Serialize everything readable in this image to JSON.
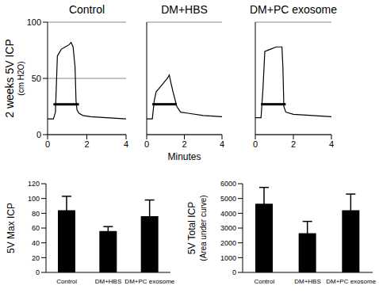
{
  "chart_data": [
    {
      "type": "line",
      "title": "Control",
      "y_label": [
        "2 weeks 5V ICP",
        "(cm H2O)"
      ],
      "x": [
        0,
        0.3,
        0.4,
        0.5,
        0.7,
        0.9,
        1.1,
        1.2,
        1.3,
        1.4,
        1.45,
        1.5,
        1.6,
        1.8,
        2.2,
        3,
        4
      ],
      "values": [
        14,
        14,
        20,
        70,
        76,
        78,
        80,
        82,
        78,
        60,
        30,
        22,
        19,
        17,
        16,
        15,
        14
      ],
      "color": "#000000",
      "stimulus": {
        "x": [
          0.3,
          1.6
        ],
        "y": 27
      },
      "xlim": [
        0,
        4
      ],
      "xticks": [
        0,
        2,
        4
      ],
      "ylim": [
        0,
        100
      ],
      "yticks": [
        0,
        50,
        100
      ],
      "grid": true
    },
    {
      "type": "line",
      "title": "DM+HBS",
      "x_label": "Minutes",
      "x": [
        0,
        0.3,
        0.4,
        0.5,
        0.7,
        0.9,
        1.1,
        1.2,
        1.3,
        1.4,
        1.6,
        1.8,
        2.2,
        3,
        4
      ],
      "values": [
        14,
        14,
        30,
        38,
        42,
        46,
        50,
        53,
        45,
        38,
        25,
        20,
        19,
        17,
        16
      ],
      "color": "#000000",
      "stimulus": {
        "x": [
          0.3,
          1.6
        ],
        "y": 27
      },
      "xlim": [
        0,
        4
      ],
      "xticks": [
        0,
        2,
        4
      ],
      "ylim": [
        0,
        100
      ],
      "yticks": [
        0,
        50,
        100
      ],
      "grid": true,
      "tick_labels": "x"
    },
    {
      "type": "line",
      "title": "DM+PC exosome",
      "x": [
        0,
        0.3,
        0.4,
        0.5,
        0.8,
        1.1,
        1.4,
        1.45,
        1.5,
        1.6,
        2,
        3,
        4
      ],
      "values": [
        15,
        15,
        40,
        74,
        76,
        78,
        78,
        60,
        25,
        20,
        18,
        17,
        16
      ],
      "color": "#000000",
      "stimulus": {
        "x": [
          0.3,
          1.6
        ],
        "y": 27
      },
      "xlim": [
        0,
        4
      ],
      "xticks": [
        0,
        2,
        4
      ],
      "ylim": [
        0,
        100
      ],
      "yticks": [
        0,
        50,
        100
      ],
      "grid": true,
      "tick_labels": "x"
    },
    {
      "type": "bar",
      "y_label": [
        "5V Max ICP"
      ],
      "categories": [
        "Control",
        "DM+HBS",
        "DM+PC exosome"
      ],
      "values": [
        84,
        56,
        76
      ],
      "errors": [
        19,
        6,
        22
      ],
      "color": "#000000",
      "ylim": [
        0,
        120
      ],
      "yticks": [
        0,
        20,
        40,
        60,
        80,
        100,
        120
      ],
      "grid": false
    },
    {
      "type": "bar",
      "y_label": [
        "5V Total ICP",
        "(Area under curve)"
      ],
      "categories": [
        "Control",
        "DM+HBS",
        "DM+PC exosome"
      ],
      "values": [
        4650,
        2650,
        4200
      ],
      "errors": [
        1100,
        800,
        1100
      ],
      "color": "#000000",
      "ylim": [
        0,
        6000
      ],
      "yticks": [
        0,
        1000,
        2000,
        3000,
        4000,
        5000,
        6000
      ],
      "grid": false
    }
  ]
}
